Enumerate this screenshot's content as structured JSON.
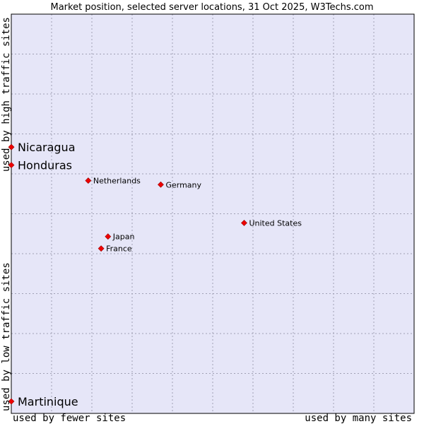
{
  "chart_data": {
    "type": "scatter",
    "title": "Market position, selected server locations, 31 Oct 2025, W3Techs.com",
    "xlabel_left": "used by fewer sites",
    "xlabel_right": "used by many sites",
    "ylabel_bottom": "used by low traffic sites",
    "ylabel_top": "used by high traffic sites",
    "xlim": [
      0,
      100
    ],
    "ylim": [
      0,
      100
    ],
    "grid": true,
    "colors": {
      "plot_background": "#e6e6f8",
      "grid": "#a0a0b4",
      "frame": "#000000",
      "marker": "#ee0000"
    },
    "points": [
      {
        "name": "Nicaragua",
        "x": 0.0,
        "y": 66.7,
        "highlight": true
      },
      {
        "name": "Honduras",
        "x": 0.0,
        "y": 62.2,
        "highlight": true
      },
      {
        "name": "Martinique",
        "x": 0.0,
        "y": 3.0,
        "highlight": true
      },
      {
        "name": "Netherlands",
        "x": 19.1,
        "y": 58.3,
        "highlight": false
      },
      {
        "name": "Germany",
        "x": 37.1,
        "y": 57.3,
        "highlight": false
      },
      {
        "name": "United States",
        "x": 57.8,
        "y": 47.7,
        "highlight": false
      },
      {
        "name": "Japan",
        "x": 24.0,
        "y": 44.3,
        "highlight": false
      },
      {
        "name": "France",
        "x": 22.3,
        "y": 41.3,
        "highlight": false
      }
    ]
  }
}
